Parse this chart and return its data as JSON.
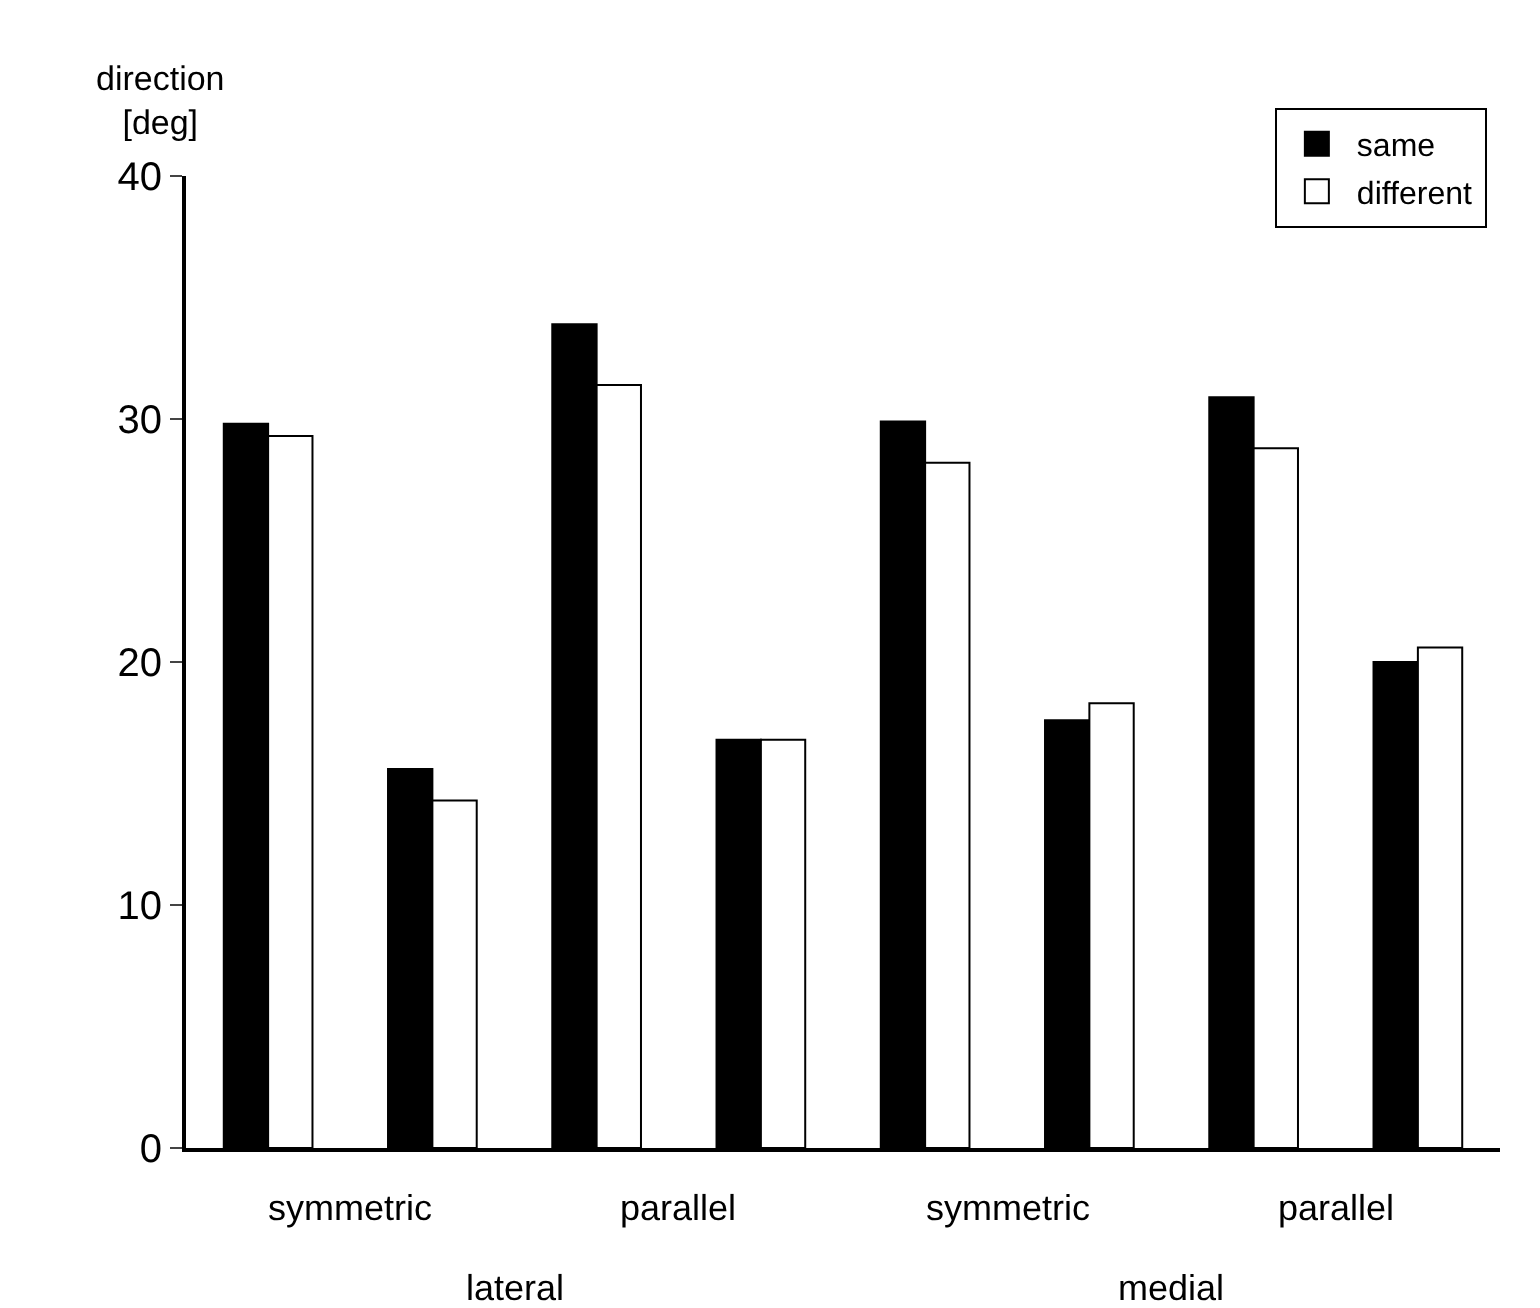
{
  "chart_data": {
    "type": "bar",
    "ylabel": "direction\n[deg]",
    "categories": [
      null,
      null,
      null,
      null,
      null,
      null,
      null,
      null
    ],
    "series": [
      {
        "name": "same",
        "color": "#000000",
        "values": [
          29.8,
          15.6,
          33.9,
          16.8,
          29.9,
          17.6,
          30.9,
          20.0
        ]
      },
      {
        "name": "different",
        "color": "#ffffff",
        "values": [
          29.3,
          14.3,
          31.4,
          16.8,
          28.2,
          18.3,
          28.8,
          20.6
        ]
      }
    ],
    "ylim": [
      0,
      40
    ],
    "yticks": [
      0,
      10,
      20,
      30,
      40
    ],
    "legend": "top right",
    "annotations": [
      "symmetric",
      "parallel",
      "symmetric",
      "parallel",
      "lateral",
      "medial"
    ]
  }
}
